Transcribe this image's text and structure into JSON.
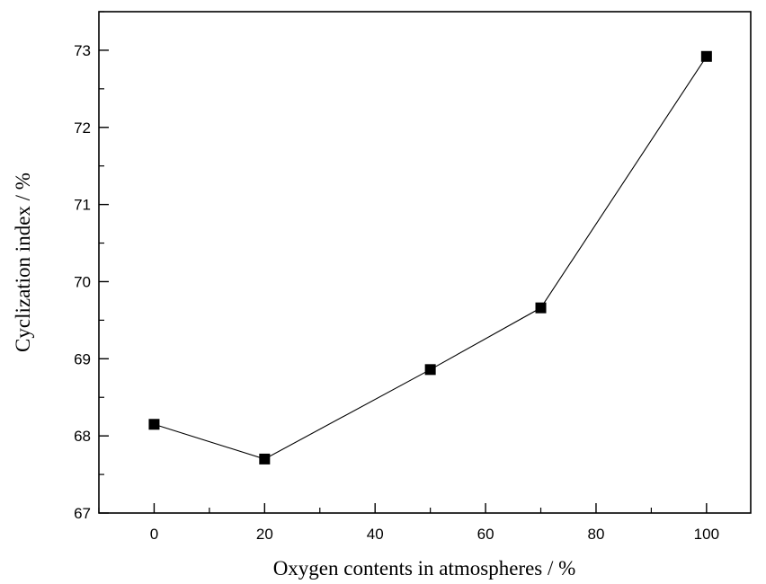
{
  "chart_data": {
    "type": "line",
    "title": "",
    "xlabel": "Oxygen contents in atmospheres / %",
    "ylabel": "Cyclization index / %",
    "xlim": [
      -10,
      108
    ],
    "ylim": [
      67,
      73.5
    ],
    "x_ticks": [
      0,
      20,
      40,
      60,
      80,
      100
    ],
    "y_ticks": [
      67,
      68,
      69,
      70,
      71,
      72,
      73
    ],
    "grid": false,
    "legend": "none",
    "marker": "square",
    "line_color": "#000000",
    "marker_color": "#000000",
    "series": [
      {
        "x": [
          0,
          20,
          50,
          70,
          100
        ],
        "y": [
          68.15,
          67.7,
          68.86,
          69.66,
          72.92
        ]
      }
    ]
  }
}
